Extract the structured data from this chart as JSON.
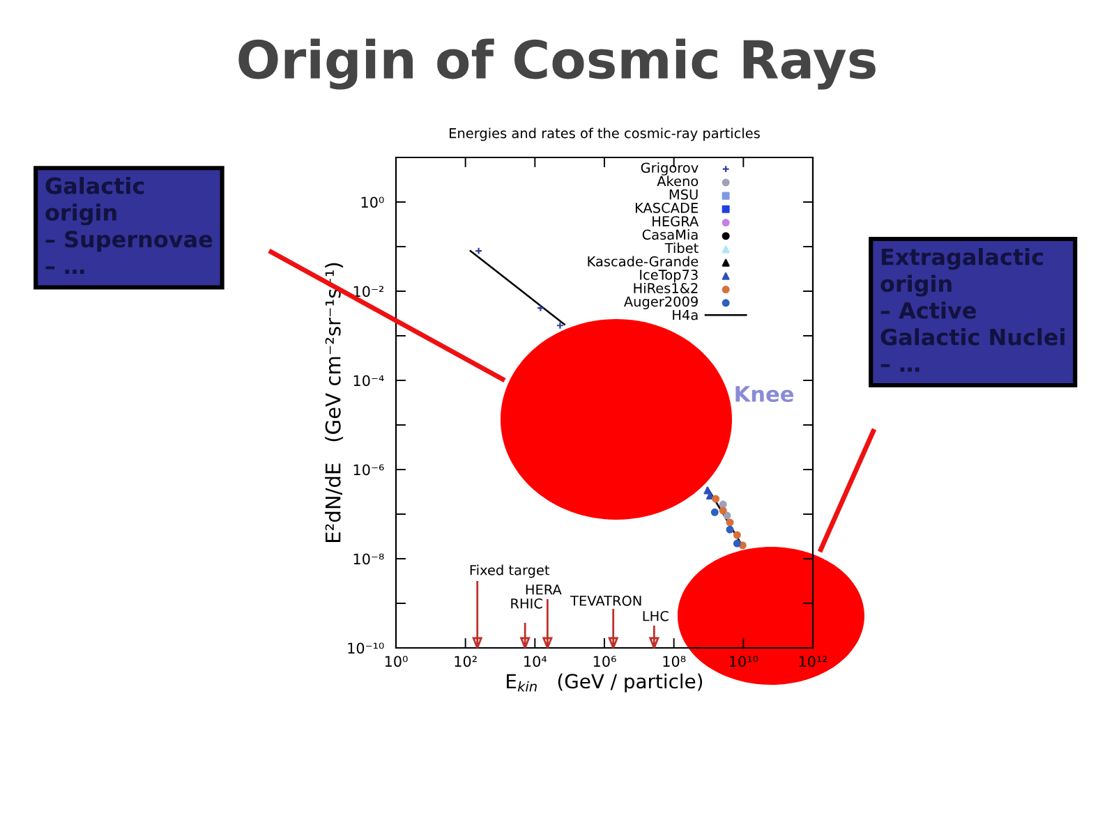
{
  "chart_data": {
    "type": "scatter",
    "title": "Origin of Cosmic Rays",
    "subtitle": "Energies and rates of the cosmic-ray particles",
    "xlabel": "E$_{kin}$   (GeV / particle)",
    "ylabel": "E²dN/dE   (GeV cm⁻²sr⁻¹s⁻¹)",
    "log": "xy",
    "xlim": [
      1,
      1000000000000.0
    ],
    "xticks": [
      {
        "value": 1,
        "label": "10⁰"
      },
      {
        "value": 100,
        "label": "10²"
      },
      {
        "value": 10000,
        "label": "10⁴"
      },
      {
        "value": 1000000.0,
        "label": "10⁶"
      },
      {
        "value": 100000000.0,
        "label": "10⁸"
      },
      {
        "value": 10000000000.0,
        "label": "10¹⁰"
      },
      {
        "value": 1000000000000.0,
        "label": "10¹²"
      }
    ],
    "ylim": [
      1e-10,
      10
    ],
    "yticks": [
      {
        "value": 1,
        "label": "10⁰"
      },
      {
        "value": 0.1,
        "label": null
      },
      {
        "value": 0.01,
        "label": "10⁻²"
      },
      {
        "value": 0.001,
        "label": null
      },
      {
        "value": 0.0001,
        "label": "10⁻⁴"
      },
      {
        "value": 1e-05,
        "label": null
      },
      {
        "value": 1e-06,
        "label": "10⁻⁶"
      },
      {
        "value": 1e-07,
        "label": null
      },
      {
        "value": 1e-08,
        "label": "10⁻⁸"
      },
      {
        "value": 1e-09,
        "label": null
      },
      {
        "value": 1e-10,
        "label": "10⁻¹⁰"
      }
    ],
    "legend": "top right",
    "series": [
      {
        "name": "Grigorov",
        "color": "#2b3f9e",
        "marker": "cross",
        "x": [
          240,
          14500,
          53000
        ],
        "values": [
          0.08,
          0.0042,
          0.0017
        ]
      },
      {
        "name": "Akeno",
        "color": "#a0a0b8",
        "marker": "circle",
        "x": [
          2600000000,
          3400000000
        ],
        "values": [
          1.65e-07,
          9.3e-08
        ]
      },
      {
        "name": "MSU",
        "color": "#7f9be0",
        "marker": "square"
      },
      {
        "name": "KASCADE",
        "color": "#1f3fe0",
        "marker": "square"
      },
      {
        "name": "HEGRA",
        "color": "#c77fe0",
        "marker": "circle"
      },
      {
        "name": "CasaMia",
        "color": "#000000",
        "marker": "circle"
      },
      {
        "name": "Tibet",
        "color": "#aee6f2",
        "marker": "triangle"
      },
      {
        "name": "Kascade-Grande",
        "color": "#000000",
        "marker": "triangle"
      },
      {
        "name": "IceTop73",
        "color": "#2f4fc0",
        "marker": "triangle",
        "x": [
          930000000,
          1100000000
        ],
        "values": [
          3.4e-07,
          2.6e-07
        ]
      },
      {
        "name": "HiRes1&2",
        "color": "#d8703a",
        "marker": "circle",
        "x": [
          1600000000,
          2600000000,
          4100000000,
          6600000000,
          9500000000
        ],
        "values": [
          2.2e-07,
          1.2e-07,
          6.5e-08,
          3.4e-08,
          2e-08
        ]
      },
      {
        "name": "Auger2009",
        "color": "#2f5fc0",
        "marker": "circle",
        "x": [
          1500000000,
          4100000000,
          6600000000
        ],
        "values": [
          1.1e-07,
          4.5e-08,
          2.2e-08
        ]
      },
      {
        "name": "H4a",
        "type": "line",
        "color": "#000000",
        "x": [
          140,
          71000,
          30000000,
          930000000,
          9500000000
        ],
        "values": [
          0.08,
          0.0018,
          null,
          3.9e-07,
          1.9e-08
        ]
      }
    ],
    "ref_lines": [
      {
        "axis": "x",
        "value": 220,
        "label": "Fixed target",
        "color": "#c0302a"
      },
      {
        "axis": "x",
        "value": 23000,
        "label": "HERA",
        "color": "#c0302a"
      },
      {
        "axis": "x",
        "value": 5200,
        "label": "RHIC",
        "color": "#c0302a"
      },
      {
        "axis": "x",
        "value": 1800000,
        "label": "TEVATRON",
        "color": "#c0302a"
      },
      {
        "axis": "x",
        "value": 27000000,
        "label": "LHC",
        "color": "#c0302a"
      }
    ],
    "annotations": [
      "Galactic\norigin\n– Supernovae\n– …",
      "Extragalactic\norigin\n– Active\nGalactic Nuclei\n– …",
      "Knee"
    ]
  }
}
